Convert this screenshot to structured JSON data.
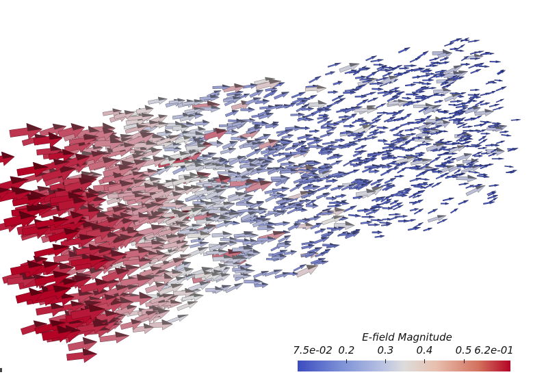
{
  "scene": {
    "description_icon": "vector-field-glyphs",
    "colormap": {
      "name": "coolwarm",
      "low_color": "#3b4cc0",
      "mid_color": "#dddcdc",
      "high_color": "#b40426"
    }
  },
  "colorbar": {
    "title": "E-field Magnitude",
    "min_label": "7.5e-02",
    "max_label": "6.2e-01",
    "ticks": [
      {
        "label": "7.5e-02",
        "value": 0.075
      },
      {
        "label": "0.2",
        "value": 0.2
      },
      {
        "label": "0.3",
        "value": 0.3
      },
      {
        "label": "0.4",
        "value": 0.4
      },
      {
        "label": "0.5",
        "value": 0.5
      },
      {
        "label": "6.2e-01",
        "value": 0.62
      }
    ],
    "range": [
      0.075,
      0.62
    ]
  }
}
